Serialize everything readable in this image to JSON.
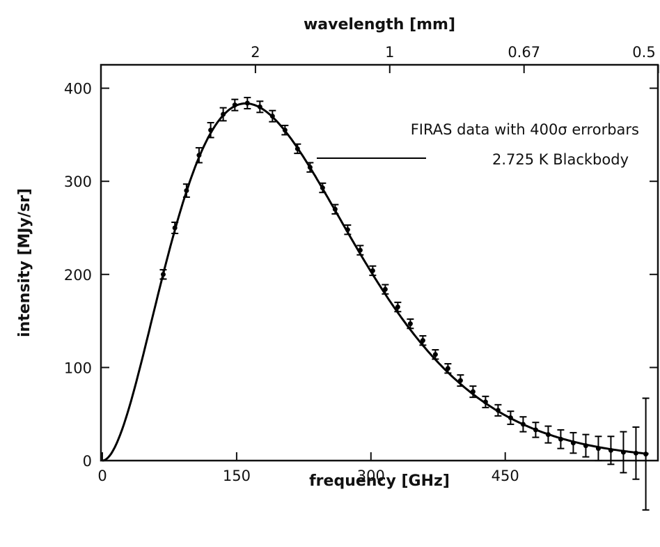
{
  "chart_data": {
    "type": "scatter",
    "x_label": "frequency [GHz]",
    "y_label": "intensity [MJy/sr]",
    "top_x_label": "wavelength [mm]",
    "xlim": [
      0,
      600
    ],
    "ylim": [
      0,
      450
    ],
    "x_ticks": [
      0,
      150,
      300,
      450
    ],
    "y_ticks": [
      0,
      100,
      200,
      300,
      400
    ],
    "top_ticks": [
      {
        "freq": 150,
        "label": "2"
      },
      {
        "freq": 300,
        "label": "1"
      },
      {
        "freq": 450,
        "label": "0.67"
      },
      {
        "freq": 600,
        "label": "0.5"
      }
    ],
    "grid": false,
    "legend_position": "top-right",
    "series": [
      {
        "name": "FIRAS data with 400σ errorbars",
        "kind": "points_with_errorbars",
        "points": [
          {
            "x": 68,
            "y": 200,
            "err": 5
          },
          {
            "x": 81,
            "y": 250,
            "err": 6
          },
          {
            "x": 94,
            "y": 290,
            "err": 7
          },
          {
            "x": 108,
            "y": 328,
            "err": 8
          },
          {
            "x": 121,
            "y": 355,
            "err": 8
          },
          {
            "x": 135,
            "y": 372,
            "err": 7
          },
          {
            "x": 148,
            "y": 382,
            "err": 6
          },
          {
            "x": 162,
            "y": 384,
            "err": 6
          },
          {
            "x": 176,
            "y": 380,
            "err": 6
          },
          {
            "x": 190,
            "y": 370,
            "err": 6
          },
          {
            "x": 204,
            "y": 355,
            "err": 5
          },
          {
            "x": 218,
            "y": 335,
            "err": 5
          },
          {
            "x": 232,
            "y": 315,
            "err": 5
          },
          {
            "x": 246,
            "y": 293,
            "err": 5
          },
          {
            "x": 260,
            "y": 270,
            "err": 5
          },
          {
            "x": 274,
            "y": 248,
            "err": 5
          },
          {
            "x": 288,
            "y": 226,
            "err": 5
          },
          {
            "x": 302,
            "y": 204,
            "err": 5
          },
          {
            "x": 316,
            "y": 184,
            "err": 5
          },
          {
            "x": 330,
            "y": 165,
            "err": 5
          },
          {
            "x": 344,
            "y": 147,
            "err": 5
          },
          {
            "x": 358,
            "y": 129,
            "err": 5
          },
          {
            "x": 372,
            "y": 114,
            "err": 5
          },
          {
            "x": 386,
            "y": 99,
            "err": 5
          },
          {
            "x": 400,
            "y": 86,
            "err": 6
          },
          {
            "x": 414,
            "y": 74,
            "err": 6
          },
          {
            "x": 428,
            "y": 63,
            "err": 6
          },
          {
            "x": 442,
            "y": 54,
            "err": 6
          },
          {
            "x": 456,
            "y": 46,
            "err": 7
          },
          {
            "x": 470,
            "y": 39,
            "err": 8
          },
          {
            "x": 484,
            "y": 33,
            "err": 8
          },
          {
            "x": 498,
            "y": 28,
            "err": 9
          },
          {
            "x": 512,
            "y": 23,
            "err": 10
          },
          {
            "x": 526,
            "y": 19,
            "err": 11
          },
          {
            "x": 540,
            "y": 16,
            "err": 12
          },
          {
            "x": 554,
            "y": 13,
            "err": 13
          },
          {
            "x": 568,
            "y": 11,
            "err": 15
          },
          {
            "x": 582,
            "y": 9,
            "err": 22
          },
          {
            "x": 596,
            "y": 8,
            "err": 28
          },
          {
            "x": 607,
            "y": 7,
            "err": 60
          }
        ]
      },
      {
        "name": "2.725 K Blackbody",
        "kind": "line",
        "temperature_K": 2.725,
        "x_range": [
          0,
          610
        ]
      }
    ]
  }
}
